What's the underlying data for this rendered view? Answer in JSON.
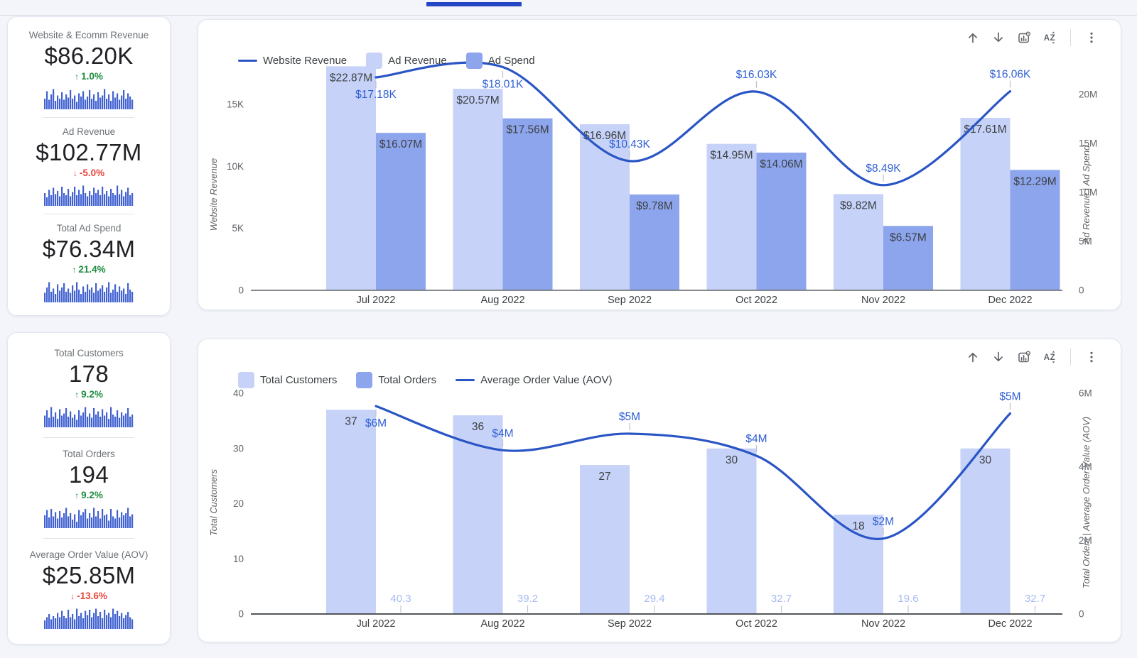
{
  "page": {
    "background": "#f3f5fa",
    "tab_indicator_color": "#2445c4",
    "accent_blue": "#2a55c5",
    "bar_light_blue": "#c6d2f8",
    "bar_medium_blue": "#8da5ed",
    "sparkline_blue": "#4262d0",
    "positive_green": "#1d8c3f",
    "negative_red": "#e8453c"
  },
  "toolbar_icons": [
    "move-up",
    "move-down",
    "chart-settings",
    "sort-a-z",
    "more-options"
  ],
  "kpi_groups": [
    {
      "items": [
        {
          "title": "Website & Ecomm Revenue",
          "value": "$86.20K",
          "delta": "1.0%",
          "direction": "up",
          "sparkline": [
            0.5,
            0.85,
            0.45,
            0.7,
            0.95,
            0.4,
            0.65,
            0.5,
            0.8,
            0.45,
            0.7,
            0.55,
            0.9,
            0.5,
            0.65,
            0.35,
            0.75,
            0.6,
            0.85,
            0.45,
            0.6,
            0.9,
            0.5,
            0.7,
            0.4,
            0.8,
            0.55,
            0.65,
            0.95,
            0.5,
            0.7,
            0.4,
            0.85,
            0.55,
            0.75,
            0.45,
            0.65,
            0.9,
            0.5,
            0.75,
            0.6,
            0.45
          ]
        },
        {
          "title": "Ad Revenue",
          "value": "$102.77M",
          "delta": "-5.0%",
          "direction": "down",
          "sparkline": [
            0.6,
            0.4,
            0.75,
            0.5,
            0.85,
            0.55,
            0.7,
            0.45,
            0.9,
            0.6,
            0.5,
            0.8,
            0.45,
            0.65,
            0.9,
            0.5,
            0.75,
            0.55,
            0.95,
            0.6,
            0.45,
            0.7,
            0.5,
            0.85,
            0.6,
            0.75,
            0.5,
            0.9,
            0.55,
            0.7,
            0.45,
            0.8,
            0.6,
            0.5,
            0.95,
            0.55,
            0.75,
            0.45,
            0.65,
            0.85,
            0.5,
            0.6
          ]
        },
        {
          "title": "Total Ad Spend",
          "value": "$76.34M",
          "delta": "21.4%",
          "direction": "up",
          "sparkline": [
            0.45,
            0.7,
            0.95,
            0.5,
            0.65,
            0.4,
            0.85,
            0.55,
            0.7,
            0.9,
            0.5,
            0.65,
            0.45,
            0.8,
            0.55,
            0.95,
            0.6,
            0.4,
            0.75,
            0.5,
            0.85,
            0.6,
            0.7,
            0.45,
            0.9,
            0.55,
            0.65,
            0.8,
            0.5,
            0.7,
            0.95,
            0.45,
            0.6,
            0.85,
            0.5,
            0.75,
            0.55,
            0.65,
            0.4,
            0.9,
            0.6,
            0.5
          ]
        }
      ]
    },
    {
      "items": [
        {
          "title": "Total Customers",
          "value": "178",
          "delta": "9.2%",
          "direction": "up",
          "sparkline": [
            0.55,
            0.8,
            0.45,
            0.95,
            0.5,
            0.7,
            0.4,
            0.85,
            0.55,
            0.65,
            0.9,
            0.5,
            0.75,
            0.45,
            0.6,
            0.35,
            0.8,
            0.55,
            0.7,
            0.95,
            0.5,
            0.65,
            0.45,
            0.9,
            0.6,
            0.75,
            0.5,
            0.85,
            0.55,
            0.7,
            0.4,
            0.95,
            0.6,
            0.5,
            0.8,
            0.45,
            0.7,
            0.55,
            0.65,
            0.9,
            0.5,
            0.6
          ]
        },
        {
          "title": "Total Orders",
          "value": "194",
          "delta": "9.2%",
          "direction": "up",
          "sparkline": [
            0.6,
            0.85,
            0.5,
            0.9,
            0.55,
            0.75,
            0.45,
            0.8,
            0.5,
            0.7,
            0.95,
            0.55,
            0.7,
            0.4,
            0.65,
            0.3,
            0.85,
            0.6,
            0.75,
            0.9,
            0.45,
            0.7,
            0.5,
            0.95,
            0.55,
            0.8,
            0.45,
            0.9,
            0.6,
            0.65,
            0.35,
            0.9,
            0.55,
            0.45,
            0.85,
            0.5,
            0.75,
            0.6,
            0.7,
            0.95,
            0.55,
            0.65
          ]
        },
        {
          "title": "Average Order Value (AOV)",
          "value": "$25.85M",
          "delta": "-13.6%",
          "direction": "down",
          "sparkline": [
            0.4,
            0.55,
            0.7,
            0.45,
            0.6,
            0.5,
            0.75,
            0.55,
            0.85,
            0.6,
            0.5,
            0.9,
            0.55,
            0.7,
            0.45,
            0.95,
            0.6,
            0.75,
            0.5,
            0.85,
            0.65,
            0.9,
            0.55,
            0.75,
            0.95,
            0.6,
            0.8,
            0.5,
            0.9,
            0.65,
            0.75,
            0.55,
            0.95,
            0.7,
            0.85,
            0.6,
            0.75,
            0.5,
            0.65,
            0.8,
            0.55,
            0.45
          ]
        }
      ]
    }
  ],
  "chart_data": [
    {
      "type": "bar",
      "subtype": "combo-bar-line",
      "categories": [
        "Jul 2022",
        "Aug 2022",
        "Sep 2022",
        "Oct 2022",
        "Nov 2022",
        "Dec 2022"
      ],
      "left_axis": {
        "title": "Website Revenue",
        "ticks": [
          {
            "v": 0,
            "label": "0"
          },
          {
            "v": 5000,
            "label": "5K"
          },
          {
            "v": 10000,
            "label": "10K"
          },
          {
            "v": 15000,
            "label": "15K"
          }
        ]
      },
      "right_axis": {
        "title": "Ad Revenue | Ad Spend",
        "ticks": [
          {
            "v": 0,
            "label": "0"
          },
          {
            "v": 5000000,
            "label": "5M"
          },
          {
            "v": 10000000,
            "label": "10M"
          },
          {
            "v": 15000000,
            "label": "15M"
          },
          {
            "v": 20000000,
            "label": "20M"
          }
        ]
      },
      "series": [
        {
          "name": "Website Revenue",
          "kind": "line",
          "axis": "left",
          "color": "#2a55c5",
          "values": [
            17180,
            18010,
            10430,
            16030,
            8490,
            16060
          ],
          "labels": [
            "$17.18K",
            "$18.01K",
            "$10.43K",
            "$16.03K",
            "$8.49K",
            "$16.06K"
          ]
        },
        {
          "name": "Ad Revenue",
          "kind": "bar",
          "axis": "right",
          "color": "#c6d2f8",
          "label_style": "inside-top",
          "values": [
            22870000,
            20570000,
            16960000,
            14950000,
            9820000,
            17610000
          ],
          "labels": [
            "$22.87M",
            "$20.57M",
            "$16.96M",
            "$14.95M",
            "$9.82M",
            "$17.61M"
          ]
        },
        {
          "name": "Ad Spend",
          "kind": "bar",
          "axis": "right",
          "color": "#8da5ed",
          "label_style": "inside-top",
          "values": [
            16070000,
            17560000,
            9780000,
            14060000,
            6570000,
            12290000
          ],
          "labels": [
            "$16.07M",
            "$17.56M",
            "$9.78M",
            "$14.06M",
            "$6.57M",
            "$12.29M"
          ]
        }
      ],
      "grid": "off",
      "legend_position": "top-left"
    },
    {
      "type": "bar",
      "subtype": "combo-bar-line",
      "categories": [
        "Jul 2022",
        "Aug 2022",
        "Sep 2022",
        "Oct 2022",
        "Nov 2022",
        "Dec 2022"
      ],
      "left_axis": {
        "title": "Total Customers",
        "ticks": [
          {
            "v": 0,
            "label": "0"
          },
          {
            "v": 10,
            "label": "10"
          },
          {
            "v": 20,
            "label": "20"
          },
          {
            "v": 30,
            "label": "30"
          },
          {
            "v": 40,
            "label": "40"
          }
        ]
      },
      "right_axis": {
        "title": "Total Orders | Average Order Value (AOV)",
        "ticks": [
          {
            "v": 0,
            "label": "0"
          },
          {
            "v": 2000000,
            "label": "2M"
          },
          {
            "v": 4000000,
            "label": "4M"
          },
          {
            "v": 6000000,
            "label": "6M"
          }
        ]
      },
      "series": [
        {
          "name": "Total Customers",
          "kind": "bar",
          "axis": "left",
          "color": "#c6d2f8",
          "label_style": "inside-top",
          "values": [
            37,
            36,
            27,
            30,
            18,
            30
          ],
          "labels": [
            "37",
            "36",
            "27",
            "30",
            "18",
            "30"
          ]
        },
        {
          "name": "Total Orders",
          "kind": "bar",
          "axis": "right",
          "color": "#8da5ed",
          "label_style": "baseline",
          "values": [
            40.3,
            39.2,
            29.4,
            32.7,
            19.6,
            32.7
          ],
          "labels": [
            "40.3",
            "39.2",
            "29.4",
            "32.7",
            "19.6",
            "32.7"
          ]
        },
        {
          "name": "Average Order Value (AOV)",
          "kind": "line",
          "axis": "right",
          "color": "#2a55c5",
          "values": [
            5650000,
            4450000,
            4900000,
            4300000,
            2050000,
            5450000
          ],
          "labels": [
            "$6M",
            "$4M",
            "$5M",
            "$4M",
            "$2M",
            "$5M"
          ]
        }
      ],
      "grid": "off",
      "legend_position": "top-left"
    }
  ]
}
